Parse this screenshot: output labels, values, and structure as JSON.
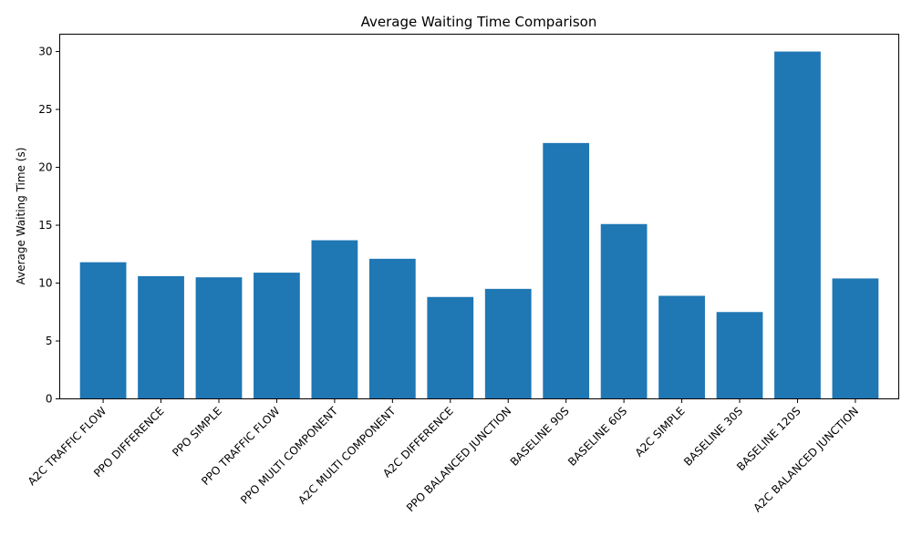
{
  "chart_data": {
    "type": "bar",
    "title": "Average Waiting Time Comparison",
    "xlabel": "",
    "ylabel": "Average Waiting Time (s)",
    "ylim": [
      0,
      31.5
    ],
    "yticks": [
      0,
      5,
      10,
      15,
      20,
      25,
      30
    ],
    "grid": false,
    "bar_color": "#1f77b4",
    "categories": [
      "A2C TRAFFIC FLOW",
      "PPO DIFFERENCE",
      "PPO SIMPLE",
      "PPO TRAFFIC FLOW",
      "PPO MULTI COMPONENT",
      "A2C MULTI COMPONENT",
      "A2C DIFFERENCE",
      "PPO BALANCED JUNCTION",
      "BASELINE 90S",
      "BASELINE 60S",
      "A2C SIMPLE",
      "BASELINE 30S",
      "BASELINE 120S",
      "A2C BALANCED JUNCTION"
    ],
    "values": [
      11.8,
      10.6,
      10.5,
      10.9,
      13.7,
      12.1,
      8.8,
      9.5,
      22.1,
      15.1,
      8.9,
      7.5,
      30.0,
      10.4
    ]
  }
}
